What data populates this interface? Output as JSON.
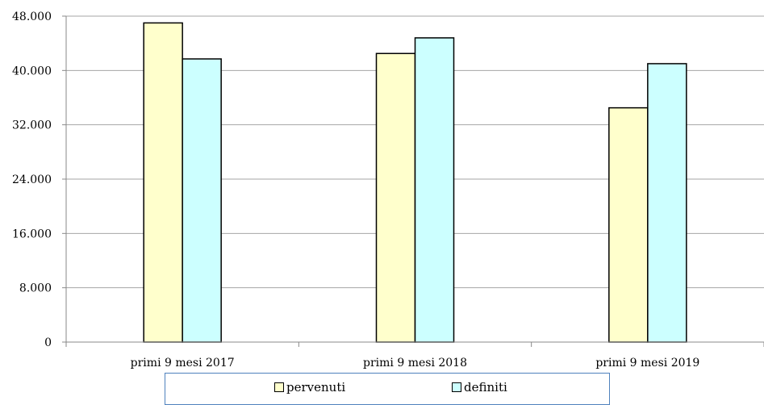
{
  "chart_data": {
    "type": "bar",
    "title": "",
    "xlabel": "",
    "ylabel": "",
    "categories": [
      "primi 9 mesi 2017",
      "primi 9 mesi 2018",
      "primi 9 mesi 2019"
    ],
    "series": [
      {
        "name": "pervenuti",
        "values": [
          47000,
          42500,
          34500
        ],
        "color": "#ffffcc"
      },
      {
        "name": "definiti",
        "values": [
          41700,
          44800,
          41000
        ],
        "color": "#ccffff"
      }
    ],
    "ylim": [
      0,
      48000
    ],
    "yticks": [
      0,
      8000,
      16000,
      24000,
      32000,
      40000,
      48000
    ],
    "ytick_labels": [
      "0",
      "8.000",
      "16.000",
      "24.000",
      "32.000",
      "40.000",
      "48.000"
    ],
    "grid": true,
    "legend_position": "bottom"
  }
}
